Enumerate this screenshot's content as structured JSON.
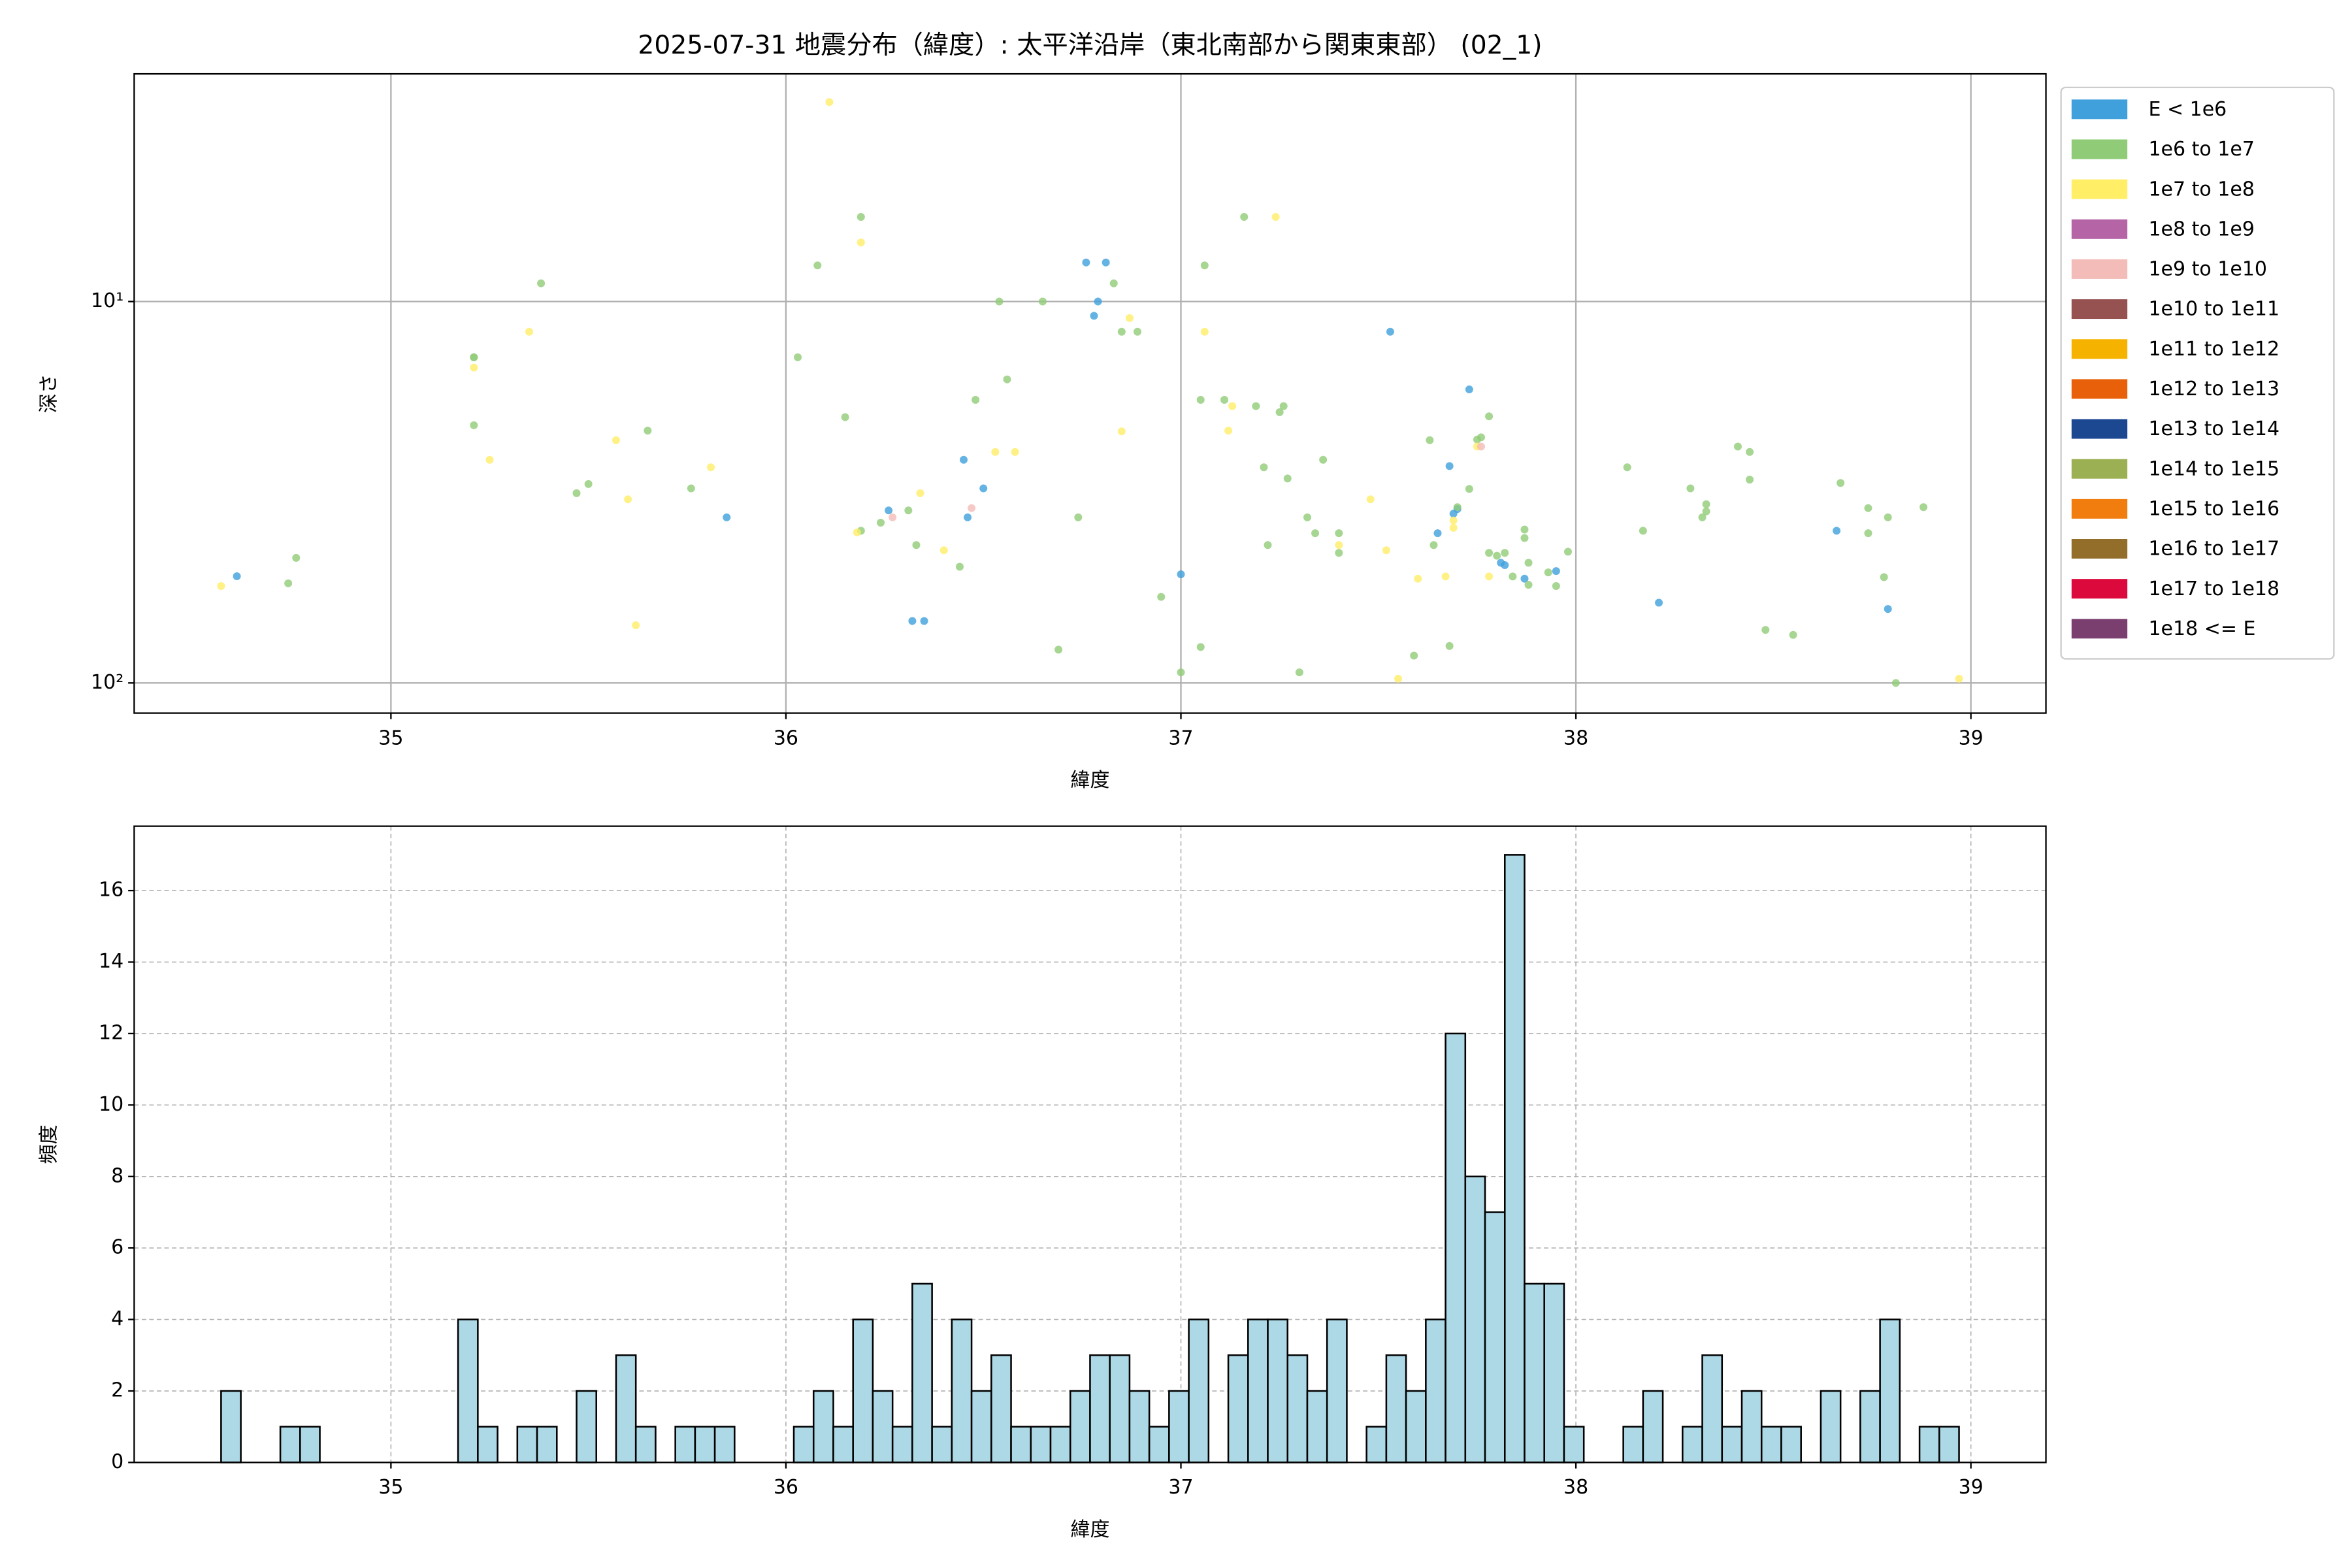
{
  "chart_data": [
    {
      "type": "scatter",
      "title": "2025-07-31 地震分布（緯度）: 太平洋沿岸（東北南部から関東東部） (02_1)",
      "x_label": "緯度",
      "y_label": "深さ",
      "xlim": [
        34.35,
        39.19
      ],
      "ylim": [
        120,
        2.53
      ],
      "log_y": true,
      "grid": "solid",
      "legend": "outside upper right",
      "xticks": [
        35,
        36,
        37,
        38,
        39
      ],
      "yticks": [
        {
          "value": 10,
          "label": "10¹"
        },
        {
          "value": 100,
          "label": "10²"
        }
      ],
      "series": [
        {
          "name": "E < 1e6",
          "color": "#3fa0dc",
          "x": [
            34.61,
            35.85,
            36.26,
            36.32,
            36.35,
            36.45,
            36.46,
            36.5,
            36.76,
            36.81,
            36.79,
            36.78,
            37.0,
            37.53,
            37.73,
            37.68,
            37.69,
            37.7,
            37.65,
            37.82,
            37.81,
            37.87,
            37.95,
            38.21,
            38.66,
            38.79
          ],
          "values": [
            52.5,
            36.8,
            35.3,
            68.8,
            68.8,
            26,
            36.8,
            30.9,
            7.9,
            7.9,
            10,
            10.9,
            51.9,
            12.0,
            17,
            27,
            36,
            35,
            40.5,
            49.1,
            48.4,
            53.3,
            50.9,
            61.6,
            39.9,
            64
          ]
        },
        {
          "name": "1e6 to 1e7",
          "color": "#90cc77",
          "x": [
            34.74,
            34.76,
            35.21,
            35.21,
            35.21,
            35.38,
            35.47,
            35.5,
            35.65,
            35.76,
            36.03,
            36.08,
            36.15,
            36.19,
            36.19,
            36.24,
            36.31,
            36.33,
            36.44,
            36.48,
            36.54,
            36.56,
            36.65,
            36.69,
            36.74,
            36.83,
            36.85,
            36.89,
            36.95,
            37.0,
            37.06,
            37.05,
            37.05,
            37.11,
            37.16,
            37.19,
            37.21,
            37.22,
            37.25,
            37.26,
            37.27,
            37.3,
            37.32,
            37.34,
            37.36,
            37.4,
            37.4,
            37.59,
            37.63,
            37.64,
            37.68,
            37.7,
            37.73,
            37.75,
            37.76,
            37.78,
            37.78,
            37.8,
            37.82,
            37.84,
            37.87,
            37.87,
            37.88,
            37.88,
            37.93,
            37.95,
            37.98,
            38.13,
            38.17,
            38.29,
            38.32,
            38.33,
            38.33,
            38.41,
            38.44,
            38.44,
            38.48,
            38.55,
            38.67,
            38.74,
            38.74,
            38.79,
            38.78,
            38.88,
            38.81
          ],
          "values": [
            54.8,
            47,
            14,
            14,
            21.1,
            8.96,
            31.8,
            30.1,
            21.8,
            30.9,
            14,
            8.04,
            20.1,
            6.0,
            39.9,
            38.0,
            35.3,
            43.5,
            49.6,
            18.1,
            10,
            16.0,
            10,
            81.8,
            36.8,
            8.96,
            12,
            12,
            59.5,
            93.8,
            8.04,
            18.1,
            80.5,
            18.1,
            6.0,
            18.8,
            27.2,
            43.5,
            19.5,
            18.8,
            29.1,
            93.8,
            36.8,
            40.5,
            26,
            40.5,
            45.6,
            84.8,
            23.1,
            43.5,
            80,
            34.6,
            31,
            23,
            22.7,
            20,
            45.6,
            46.4,
            45.6,
            52.6,
            41.7,
            39.6,
            48.4,
            55.3,
            51.3,
            55.7,
            45.3,
            27.2,
            39.9,
            30.9,
            36.8,
            34.0,
            35.5,
            24,
            29.3,
            24.8,
            72.6,
            74.8,
            29.9,
            34.8,
            40.5,
            36.8,
            52.8,
            34.6,
            100
          ]
        },
        {
          "name": "1e7 to 1e8",
          "color": "#ffee66",
          "x": [
            34.57,
            35.21,
            35.25,
            35.35,
            35.57,
            35.6,
            35.62,
            35.81,
            36.11,
            36.18,
            36.19,
            36.34,
            36.4,
            36.53,
            36.58,
            36.85,
            36.87,
            37.06,
            37.12,
            37.13,
            37.24,
            37.4,
            37.48,
            37.52,
            37.55,
            37.6,
            37.67,
            37.69,
            37.69,
            37.75,
            37.78,
            38.97
          ],
          "values": [
            55.7,
            14.9,
            26,
            12,
            23.1,
            33.0,
            70.6,
            27.2,
            3.0,
            40.3,
            7.0,
            31.8,
            44.9,
            24.8,
            24.8,
            21.9,
            11.05,
            12,
            21.8,
            18.8,
            6.0,
            43.5,
            33.0,
            44.9,
            97.5,
            53.3,
            52.6,
            39.2,
            37.5,
            24,
            52.6,
            97.5
          ]
        },
        {
          "name": "1e8 to 1e9",
          "color": "#b565a5",
          "x": [],
          "values": []
        },
        {
          "name": "1e9 to 1e10",
          "color": "#f4bcb8",
          "x": [
            36.27,
            36.47,
            37.76
          ],
          "values": [
            36.8,
            34.8,
            24
          ]
        },
        {
          "name": "1e10 to 1e11",
          "color": "#955251",
          "x": [],
          "values": []
        },
        {
          "name": "1e11 to 1e12",
          "color": "#f5b300",
          "x": [],
          "values": []
        },
        {
          "name": "1e12 to 1e13",
          "color": "#e8610a",
          "x": [],
          "values": []
        },
        {
          "name": "1e13 to 1e14",
          "color": "#1c4791",
          "x": [],
          "values": []
        },
        {
          "name": "1e14 to 1e15",
          "color": "#9bb053",
          "x": [],
          "values": []
        },
        {
          "name": "1e15 to 1e16",
          "color": "#f07d0e",
          "x": [],
          "values": []
        },
        {
          "name": "1e16 to 1e17",
          "color": "#936d2a",
          "x": [],
          "values": []
        },
        {
          "name": "1e17 to 1e18",
          "color": "#dc0a3c",
          "x": [],
          "values": []
        },
        {
          "name": "1e18 <= E",
          "color": "#7b3f6f",
          "x": [],
          "values": []
        }
      ]
    },
    {
      "type": "histogram",
      "x_label": "緯度",
      "y_label": "頻度",
      "xlim": [
        34.35,
        39.19
      ],
      "ylim": [
        0,
        17.8
      ],
      "grid": "dashed",
      "color": "#add8e6",
      "edgecolor": "#000000",
      "xticks": [
        35,
        36,
        37,
        38,
        39
      ],
      "yticks": [
        0,
        2,
        4,
        6,
        8,
        10,
        12,
        14,
        16
      ],
      "bins": [
        34.57,
        34.62,
        34.67,
        34.72,
        34.77,
        34.82,
        34.87,
        34.92,
        34.97,
        35.02,
        35.07,
        35.12,
        35.17,
        35.22,
        35.27,
        35.32,
        35.37,
        35.42,
        35.47,
        35.52,
        35.57,
        35.62,
        35.67,
        35.72,
        35.77,
        35.82,
        35.87,
        35.92,
        35.97,
        36.02,
        36.07,
        36.12,
        36.17,
        36.22,
        36.27,
        36.32,
        36.37,
        36.42,
        36.47,
        36.52,
        36.57,
        36.62,
        36.67,
        36.72,
        36.77,
        36.82,
        36.87,
        36.92,
        36.97,
        37.02,
        37.07,
        37.12,
        37.17,
        37.22,
        37.27,
        37.32,
        37.37,
        37.42,
        37.47,
        37.52,
        37.57,
        37.62,
        37.67,
        37.72,
        37.77,
        37.82,
        37.87,
        37.92,
        37.97,
        38.02,
        38.07,
        38.12,
        38.17,
        38.22,
        38.27,
        38.32,
        38.37,
        38.42,
        38.47,
        38.52,
        38.57,
        38.62,
        38.67,
        38.72,
        38.77,
        38.82,
        38.87,
        38.92,
        38.97
      ],
      "values": [
        2,
        0,
        0,
        1,
        1,
        0,
        0,
        0,
        0,
        0,
        0,
        0,
        4,
        1,
        0,
        1,
        1,
        0,
        2,
        0,
        3,
        1,
        0,
        1,
        1,
        1,
        0,
        0,
        0,
        1,
        2,
        1,
        4,
        2,
        1,
        5,
        1,
        4,
        2,
        3,
        1,
        1,
        1,
        2,
        3,
        3,
        2,
        1,
        2,
        4,
        0,
        3,
        4,
        4,
        3,
        2,
        4,
        0,
        1,
        3,
        2,
        4,
        12,
        8,
        7,
        17,
        5,
        5,
        1,
        0,
        0,
        1,
        2,
        0,
        1,
        3,
        1,
        2,
        1,
        1,
        0,
        2,
        0,
        2,
        4,
        0,
        1,
        1
      ]
    }
  ]
}
